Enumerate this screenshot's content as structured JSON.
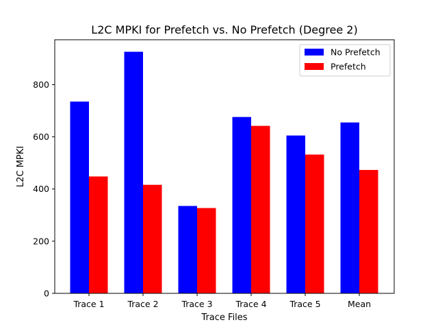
{
  "chart_data": {
    "type": "bar",
    "title": "L2C MPKI for Prefetch vs. No Prefetch (Degree 2)",
    "xlabel": "Trace Files",
    "ylabel": "L2C MPKI",
    "categories": [
      "Trace 1",
      "Trace 2",
      "Trace 3",
      "Trace 4",
      "Trace 5",
      "Mean"
    ],
    "series": [
      {
        "name": "No Prefetch",
        "color": "#0000ff",
        "values": [
          735,
          926,
          335,
          676,
          605,
          655
        ]
      },
      {
        "name": "Prefetch",
        "color": "#ff0000",
        "values": [
          448,
          416,
          327,
          642,
          532,
          473
        ]
      }
    ],
    "ylim": [
      0,
      972
    ],
    "yticks": [
      0,
      200,
      400,
      600,
      800
    ],
    "grid": false,
    "legend_position": "top-right"
  }
}
